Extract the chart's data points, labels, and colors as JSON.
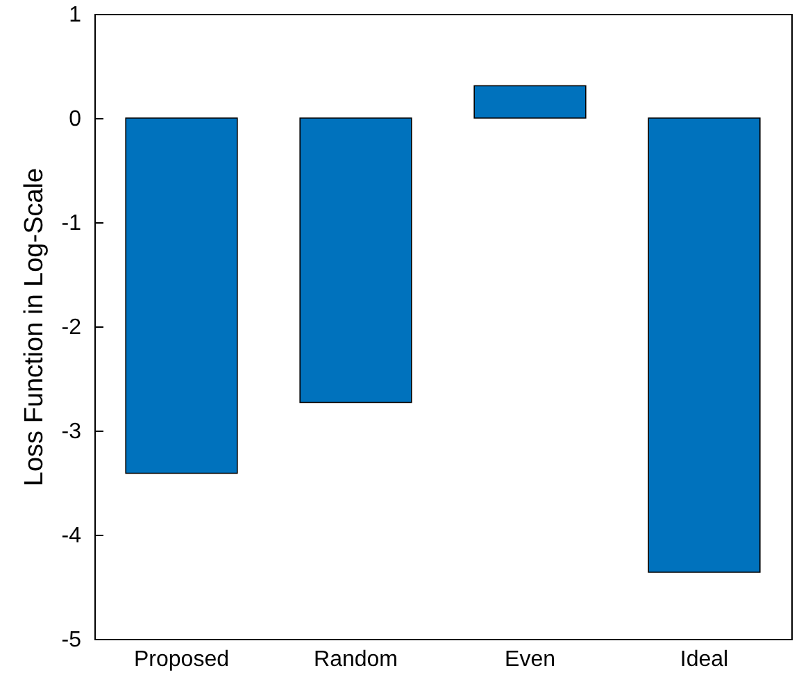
{
  "chart_data": {
    "type": "bar",
    "ylabel": "Loss Function in Log-Scale",
    "categories": [
      "Proposed",
      "Random",
      "Even",
      "Ideal"
    ],
    "values": [
      -3.41,
      -2.73,
      0.31,
      -4.36
    ],
    "color": "#0072bd",
    "ylim": [
      -5,
      1
    ],
    "yticks": [
      -5,
      -4,
      -3,
      -2,
      -1,
      0,
      1
    ],
    "grid": false
  }
}
